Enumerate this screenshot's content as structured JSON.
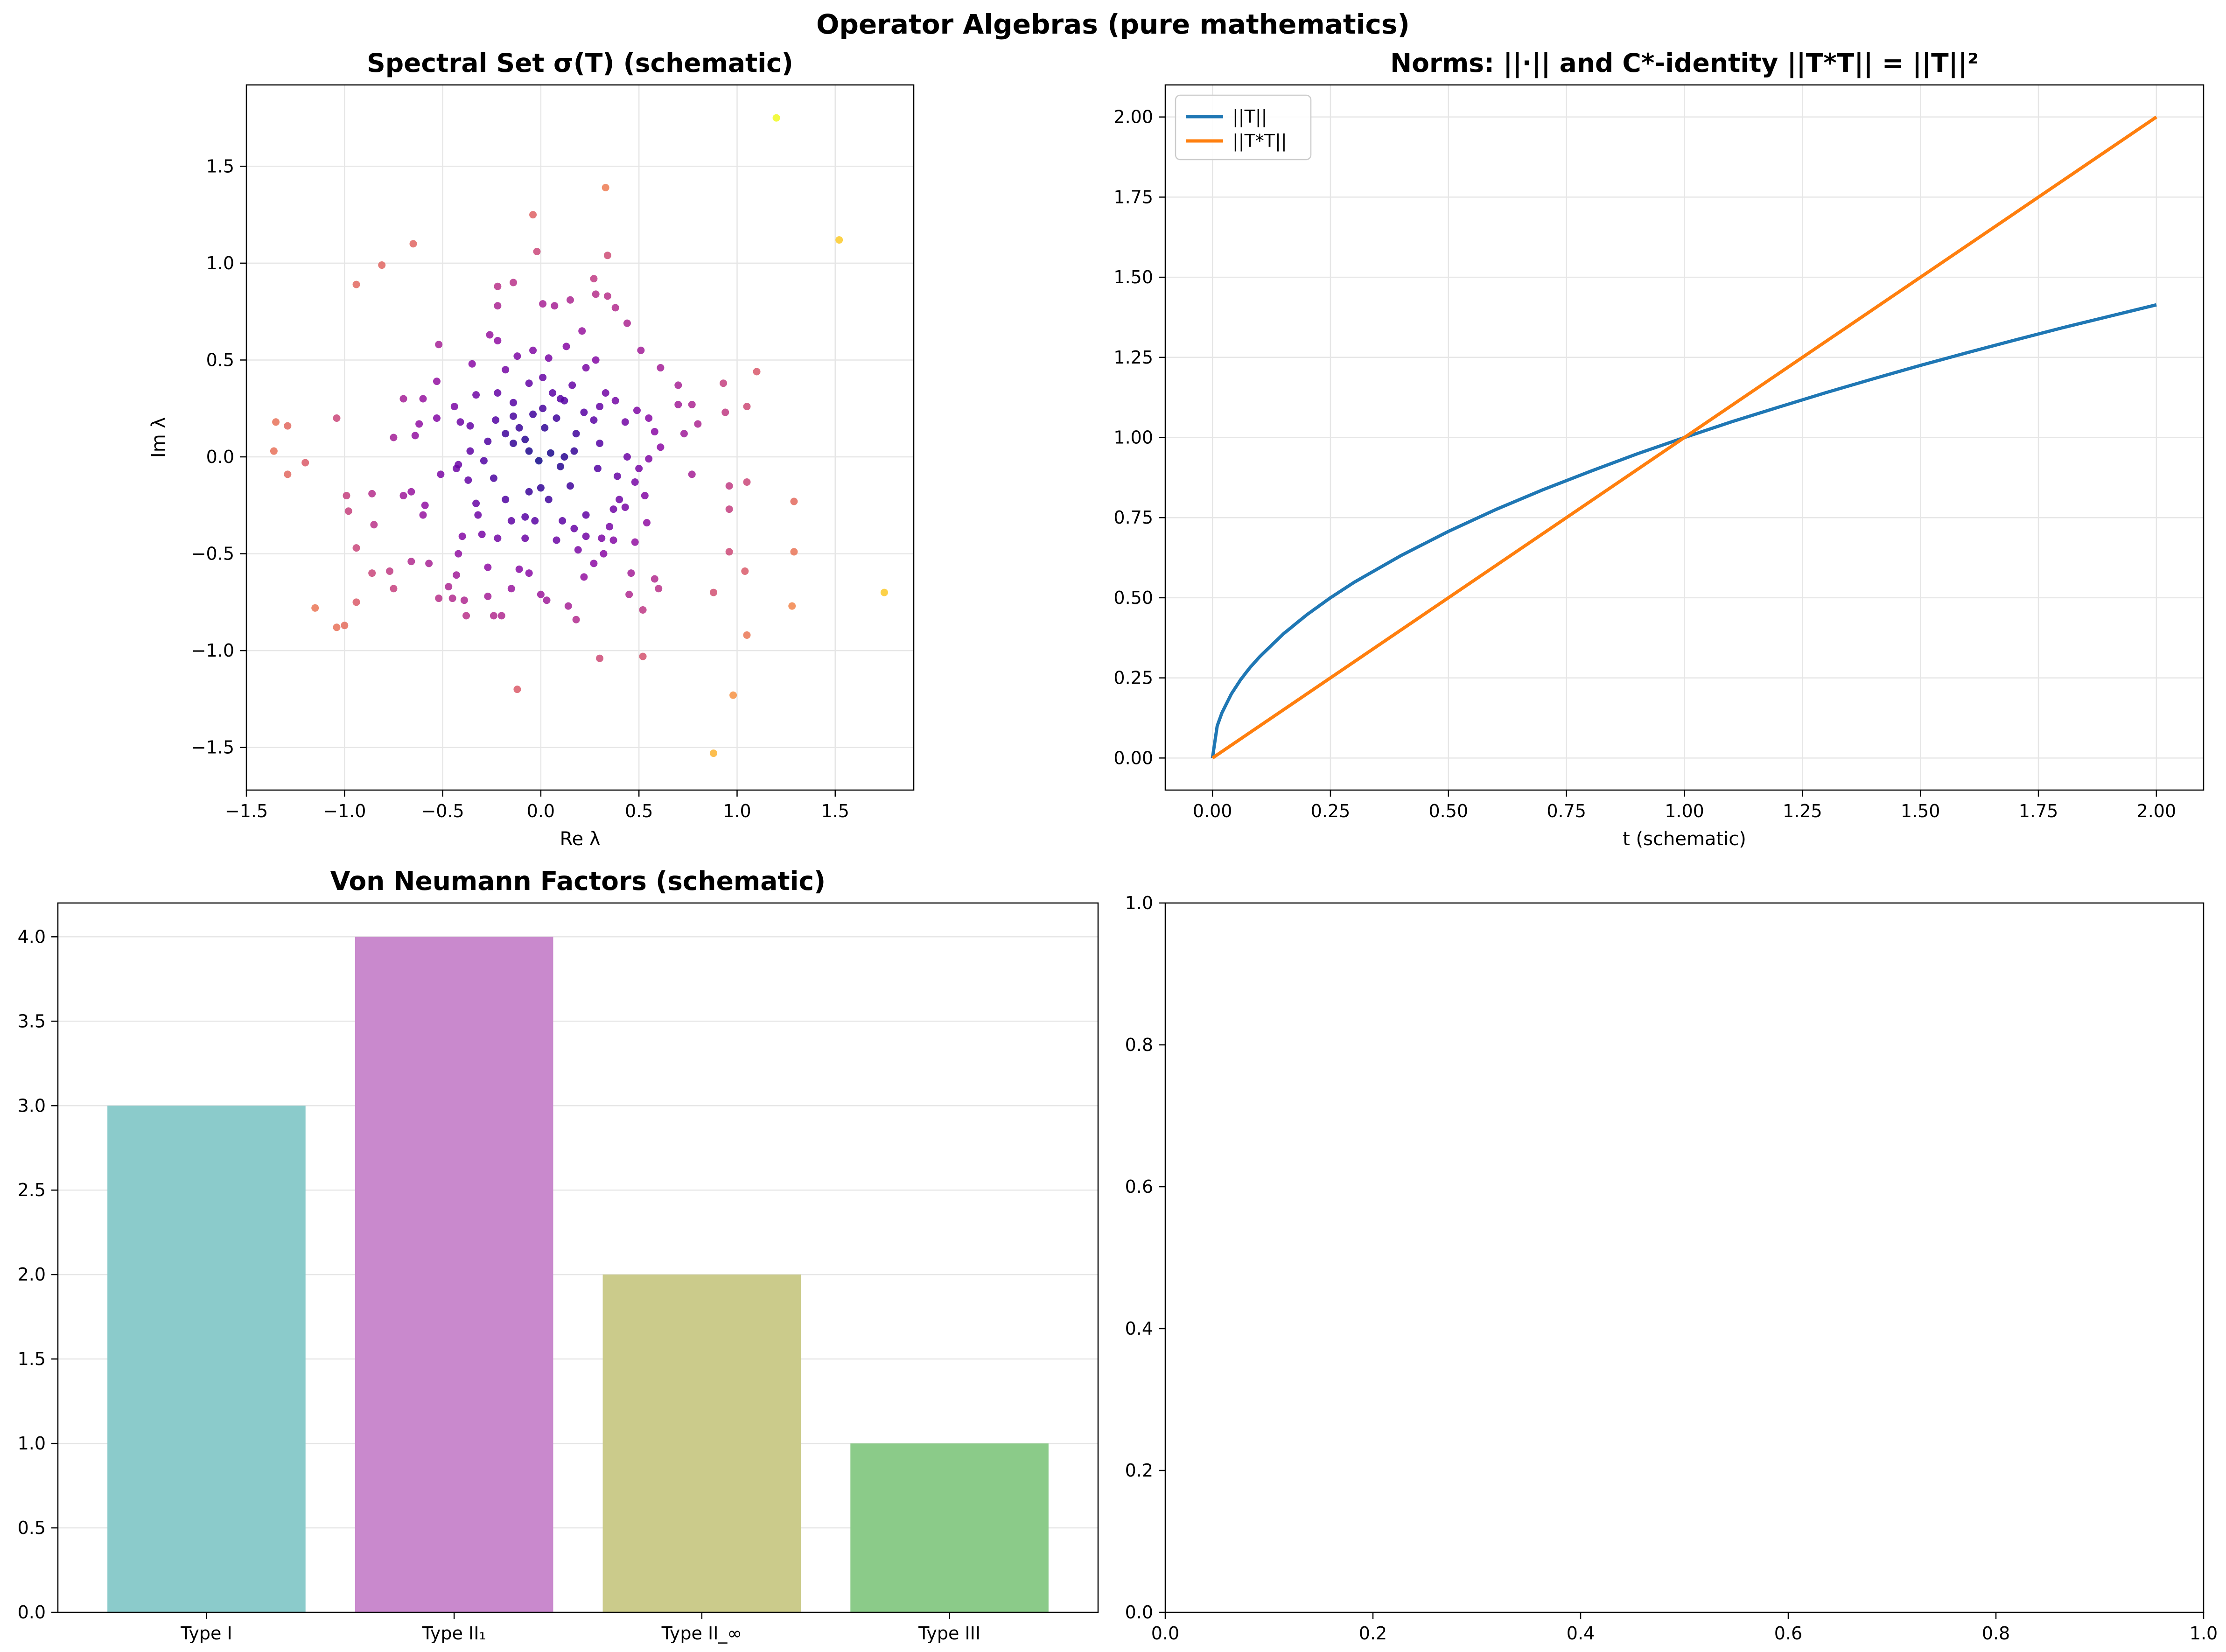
{
  "suptitle": "Operator Algebras (pure mathematics)",
  "chart_data": [
    {
      "type": "scatter",
      "title": "Spectral Set σ(T) (schematic)",
      "xlabel": "Re λ",
      "ylabel": "Im λ",
      "xlim": [
        -1.5,
        1.9
      ],
      "ylim": [
        -1.72,
        1.92
      ],
      "xticks": [
        -1.5,
        -1.0,
        -0.5,
        0.0,
        0.5,
        1.0,
        1.5
      ],
      "xtick_labels": [
        "−1.5",
        "−1.0",
        "−0.5",
        "0.0",
        "0.5",
        "1.0",
        "1.5"
      ],
      "yticks": [
        -1.5,
        -1.0,
        -0.5,
        0.0,
        0.5,
        1.0,
        1.5
      ],
      "ytick_labels": [
        "−1.5",
        "−1.0",
        "−0.5",
        "0.0",
        "0.5",
        "1.0",
        "1.5"
      ],
      "grid": true,
      "colormap": "plasma (by |λ|)",
      "points": [
        [
          1.2,
          1.75
        ],
        [
          1.52,
          1.12
        ],
        [
          1.75,
          -0.7
        ],
        [
          0.88,
          -1.53
        ],
        [
          0.98,
          -1.23
        ],
        [
          0.33,
          1.39
        ],
        [
          0.34,
          1.04
        ],
        [
          -0.04,
          1.25
        ],
        [
          -0.02,
          1.06
        ],
        [
          -0.81,
          0.99
        ],
        [
          -0.65,
          1.1
        ],
        [
          -0.94,
          0.89
        ],
        [
          -1.35,
          0.18
        ],
        [
          -1.29,
          0.16
        ],
        [
          -1.36,
          0.03
        ],
        [
          -1.2,
          -0.03
        ],
        [
          -1.29,
          -0.09
        ],
        [
          -1.04,
          0.2
        ],
        [
          -0.99,
          -0.2
        ],
        [
          -0.98,
          -0.28
        ],
        [
          -0.94,
          -0.47
        ],
        [
          -0.86,
          -0.19
        ],
        [
          -0.85,
          -0.35
        ],
        [
          -0.86,
          -0.6
        ],
        [
          -0.77,
          -0.59
        ],
        [
          -0.75,
          -0.68
        ],
        [
          -0.94,
          -0.75
        ],
        [
          -1.15,
          -0.78
        ],
        [
          -1.04,
          -0.88
        ],
        [
          -1.0,
          -0.87
        ],
        [
          -0.12,
          -1.2
        ],
        [
          0.3,
          -1.04
        ],
        [
          0.52,
          -1.03
        ],
        [
          1.05,
          -0.92
        ],
        [
          1.04,
          -0.59
        ],
        [
          1.28,
          -0.77
        ],
        [
          1.29,
          -0.49
        ],
        [
          1.29,
          -0.23
        ],
        [
          1.05,
          -0.13
        ],
        [
          0.96,
          -0.15
        ],
        [
          0.96,
          -0.27
        ],
        [
          0.96,
          -0.49
        ],
        [
          0.88,
          -0.7
        ],
        [
          1.05,
          0.26
        ],
        [
          1.1,
          0.44
        ],
        [
          0.93,
          0.38
        ],
        [
          0.94,
          0.23
        ],
        [
          0.8,
          0.17
        ],
        [
          0.77,
          0.27
        ],
        [
          0.7,
          0.37
        ],
        [
          0.7,
          0.27
        ],
        [
          0.73,
          0.12
        ],
        [
          0.77,
          -0.09
        ],
        [
          0.61,
          0.46
        ],
        [
          0.51,
          0.55
        ],
        [
          0.44,
          0.69
        ],
        [
          0.38,
          0.77
        ],
        [
          0.34,
          0.83
        ],
        [
          0.28,
          0.84
        ],
        [
          0.27,
          0.92
        ],
        [
          0.15,
          0.81
        ],
        [
          0.07,
          0.78
        ],
        [
          0.01,
          0.79
        ],
        [
          -0.14,
          0.9
        ],
        [
          -0.22,
          0.88
        ],
        [
          -0.22,
          0.78
        ],
        [
          -0.26,
          0.63
        ],
        [
          -0.22,
          0.6
        ],
        [
          -0.35,
          0.48
        ],
        [
          -0.52,
          0.58
        ],
        [
          -0.53,
          0.39
        ],
        [
          -0.7,
          0.3
        ],
        [
          -0.6,
          0.3
        ],
        [
          -0.64,
          0.11
        ],
        [
          -0.75,
          0.1
        ],
        [
          -0.53,
          0.2
        ],
        [
          -0.62,
          0.17
        ],
        [
          -0.7,
          -0.2
        ],
        [
          -0.66,
          -0.18
        ],
        [
          -0.59,
          -0.25
        ],
        [
          -0.6,
          -0.3
        ],
        [
          -0.51,
          -0.09
        ],
        [
          -0.43,
          -0.06
        ],
        [
          -0.4,
          -0.41
        ],
        [
          -0.42,
          -0.5
        ],
        [
          -0.66,
          -0.54
        ],
        [
          -0.57,
          -0.55
        ],
        [
          -0.43,
          -0.61
        ],
        [
          -0.47,
          -0.67
        ],
        [
          -0.52,
          -0.73
        ],
        [
          -0.45,
          -0.73
        ],
        [
          -0.39,
          -0.74
        ],
        [
          -0.38,
          -0.82
        ],
        [
          -0.27,
          -0.72
        ],
        [
          -0.24,
          -0.82
        ],
        [
          -0.2,
          -0.82
        ],
        [
          -0.15,
          -0.68
        ],
        [
          -0.11,
          -0.58
        ],
        [
          -0.06,
          -0.6
        ],
        [
          0.0,
          -0.71
        ],
        [
          0.03,
          -0.74
        ],
        [
          0.14,
          -0.77
        ],
        [
          0.18,
          -0.84
        ],
        [
          0.22,
          -0.62
        ],
        [
          0.27,
          -0.55
        ],
        [
          0.32,
          -0.5
        ],
        [
          0.37,
          -0.43
        ],
        [
          0.48,
          -0.44
        ],
        [
          0.46,
          -0.6
        ],
        [
          0.45,
          -0.71
        ],
        [
          0.52,
          -0.79
        ],
        [
          0.58,
          -0.63
        ],
        [
          0.6,
          -0.68
        ],
        [
          0.54,
          -0.34
        ],
        [
          0.53,
          -0.2
        ],
        [
          0.5,
          -0.06
        ],
        [
          0.44,
          0.0
        ],
        [
          0.39,
          -0.1
        ],
        [
          0.4,
          -0.22
        ],
        [
          0.37,
          -0.27
        ],
        [
          0.35,
          -0.36
        ],
        [
          0.31,
          -0.42
        ],
        [
          0.19,
          -0.48
        ],
        [
          0.11,
          -0.33
        ],
        [
          0.04,
          -0.22
        ],
        [
          0.0,
          -0.16
        ],
        [
          -0.06,
          -0.18
        ],
        [
          -0.15,
          -0.33
        ],
        [
          -0.22,
          -0.42
        ],
        [
          -0.27,
          -0.57
        ],
        [
          -0.3,
          -0.4
        ],
        [
          -0.33,
          -0.24
        ],
        [
          -0.37,
          -0.12
        ],
        [
          -0.42,
          -0.04
        ],
        [
          -0.36,
          0.03
        ],
        [
          -0.27,
          0.08
        ],
        [
          -0.18,
          0.12
        ],
        [
          -0.11,
          0.15
        ],
        [
          -0.06,
          0.03
        ],
        [
          -0.01,
          -0.02
        ],
        [
          0.05,
          0.02
        ],
        [
          0.1,
          -0.05
        ],
        [
          0.12,
          0.0
        ],
        [
          0.17,
          0.03
        ],
        [
          0.18,
          0.12
        ],
        [
          0.22,
          0.23
        ],
        [
          0.27,
          0.19
        ],
        [
          0.3,
          0.26
        ],
        [
          0.33,
          0.33
        ],
        [
          0.38,
          0.29
        ],
        [
          0.43,
          0.18
        ],
        [
          0.49,
          0.24
        ],
        [
          0.55,
          0.2
        ],
        [
          0.58,
          0.13
        ],
        [
          0.61,
          0.05
        ],
        [
          0.55,
          -0.01
        ],
        [
          0.48,
          -0.13
        ],
        [
          0.43,
          -0.26
        ],
        [
          0.23,
          -0.41
        ],
        [
          0.17,
          -0.37
        ],
        [
          0.08,
          -0.43
        ],
        [
          -0.03,
          -0.33
        ],
        [
          -0.08,
          -0.31
        ],
        [
          -0.18,
          -0.22
        ],
        [
          -0.24,
          -0.11
        ],
        [
          -0.29,
          -0.02
        ],
        [
          -0.36,
          0.16
        ],
        [
          -0.41,
          0.18
        ],
        [
          -0.44,
          0.26
        ],
        [
          -0.33,
          0.32
        ],
        [
          -0.22,
          0.33
        ],
        [
          -0.14,
          0.28
        ],
        [
          -0.06,
          0.38
        ],
        [
          0.01,
          0.41
        ],
        [
          0.06,
          0.33
        ],
        [
          0.12,
          0.29
        ],
        [
          0.16,
          0.37
        ],
        [
          0.23,
          0.46
        ],
        [
          0.28,
          0.5
        ],
        [
          0.21,
          0.65
        ],
        [
          0.13,
          0.57
        ],
        [
          0.04,
          0.51
        ],
        [
          -0.04,
          0.55
        ],
        [
          -0.12,
          0.52
        ],
        [
          -0.18,
          0.45
        ],
        [
          -0.23,
          0.19
        ],
        [
          -0.14,
          0.21
        ],
        [
          -0.08,
          0.09
        ],
        [
          0.02,
          0.15
        ],
        [
          0.08,
          0.2
        ],
        [
          0.01,
          0.25
        ],
        [
          -0.04,
          0.22
        ],
        [
          0.23,
          -0.3
        ],
        [
          0.29,
          -0.06
        ],
        [
          0.3,
          0.07
        ],
        [
          -0.08,
          -0.42
        ],
        [
          -0.14,
          0.07
        ],
        [
          0.1,
          0.3
        ],
        [
          0.15,
          -0.15
        ],
        [
          -0.32,
          -0.3
        ]
      ]
    },
    {
      "type": "line",
      "title": "Norms: ||·|| and C*-identity ||T*T|| = ||T||²",
      "xlabel": "t (schematic)",
      "ylabel": "",
      "xlim": [
        -0.1,
        2.1
      ],
      "ylim": [
        -0.1,
        2.1
      ],
      "xticks": [
        0.0,
        0.25,
        0.5,
        0.75,
        1.0,
        1.25,
        1.5,
        1.75,
        2.0
      ],
      "xtick_labels": [
        "0.00",
        "0.25",
        "0.50",
        "0.75",
        "1.00",
        "1.25",
        "1.50",
        "1.75",
        "2.00"
      ],
      "yticks": [
        0.0,
        0.25,
        0.5,
        0.75,
        1.0,
        1.25,
        1.5,
        1.75,
        2.0
      ],
      "ytick_labels": [
        "0.00",
        "0.25",
        "0.50",
        "0.75",
        "1.00",
        "1.25",
        "1.50",
        "1.75",
        "2.00"
      ],
      "grid": true,
      "legend": "upper-left",
      "series": [
        {
          "name": "||T||",
          "color": "#1f77b4",
          "x": [
            0.0,
            0.01,
            0.02,
            0.04,
            0.06,
            0.08,
            0.1,
            0.15,
            0.2,
            0.25,
            0.3,
            0.4,
            0.5,
            0.6,
            0.7,
            0.8,
            0.9,
            1.0,
            1.1,
            1.2,
            1.3,
            1.4,
            1.5,
            1.6,
            1.7,
            1.8,
            1.9,
            2.0
          ],
          "y": [
            0.0,
            0.1,
            0.141,
            0.2,
            0.245,
            0.283,
            0.316,
            0.387,
            0.447,
            0.5,
            0.548,
            0.632,
            0.707,
            0.775,
            0.837,
            0.894,
            0.949,
            1.0,
            1.049,
            1.095,
            1.14,
            1.183,
            1.225,
            1.265,
            1.304,
            1.342,
            1.378,
            1.414
          ]
        },
        {
          "name": "||T*T||",
          "color": "#ff7f0e",
          "x": [
            0.0,
            2.0
          ],
          "y": [
            0.0,
            2.0
          ]
        }
      ]
    },
    {
      "type": "bar",
      "title": "Von Neumann Factors (schematic)",
      "xlabel": "",
      "ylabel": "",
      "categories": [
        "Type I",
        "Type II₁",
        "Type II_∞",
        "Type III"
      ],
      "values": [
        3,
        4,
        2,
        1
      ],
      "colors": [
        "#8bcbcb",
        "#c989cd",
        "#cbcb8b",
        "#8bcb89"
      ],
      "ylim": [
        0,
        4.2
      ],
      "yticks": [
        0.0,
        0.5,
        1.0,
        1.5,
        2.0,
        2.5,
        3.0,
        3.5,
        4.0
      ],
      "ytick_labels": [
        "0.0",
        "0.5",
        "1.0",
        "1.5",
        "2.0",
        "2.5",
        "3.0",
        "3.5",
        "4.0"
      ],
      "grid": true
    },
    {
      "type": "empty",
      "xlim": [
        0,
        1
      ],
      "ylim": [
        0,
        1
      ],
      "xticks": [
        0.0,
        0.2,
        0.4,
        0.6,
        0.8,
        1.0
      ],
      "xtick_labels": [
        "0.0",
        "0.2",
        "0.4",
        "0.6",
        "0.8",
        "1.0"
      ],
      "yticks": [
        0.0,
        0.2,
        0.4,
        0.6,
        0.8,
        1.0
      ],
      "ytick_labels": [
        "0.0",
        "0.2",
        "0.4",
        "0.6",
        "0.8",
        "1.0"
      ],
      "grid": false
    }
  ]
}
